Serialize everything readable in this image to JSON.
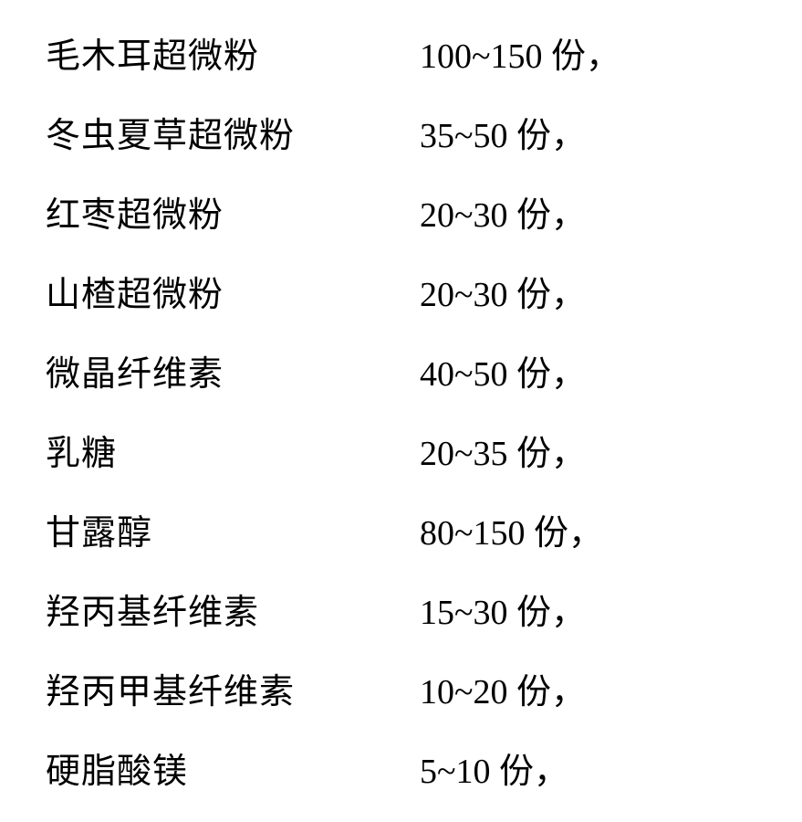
{
  "rows": [
    {
      "ingredient": "毛木耳超微粉",
      "amount": "100~150 份，"
    },
    {
      "ingredient": "冬虫夏草超微粉",
      "amount": "35~50 份，"
    },
    {
      "ingredient": "红枣超微粉",
      "amount": "20~30 份，"
    },
    {
      "ingredient": "山楂超微粉",
      "amount": "20~30 份，"
    },
    {
      "ingredient": "微晶纤维素",
      "amount": "40~50 份，"
    },
    {
      "ingredient": "乳糖",
      "amount": "20~35 份，"
    },
    {
      "ingredient": "甘露醇",
      "amount": "80~150 份，"
    },
    {
      "ingredient": "羟丙基纤维素",
      "amount": "15~30 份，"
    },
    {
      "ingredient": "羟丙甲基纤维素",
      "amount": "10~20 份，"
    },
    {
      "ingredient": "硬脂酸镁",
      "amount": "5~10 份，"
    }
  ],
  "style": {
    "background_color": "#ffffff",
    "text_color": "#000000",
    "font_family": "SimSun",
    "font_size": 38,
    "ingredient_column_width": 410,
    "row_spacing": 32,
    "letter_spacing_ingredient": 1,
    "letter_spacing_amount": 0
  }
}
